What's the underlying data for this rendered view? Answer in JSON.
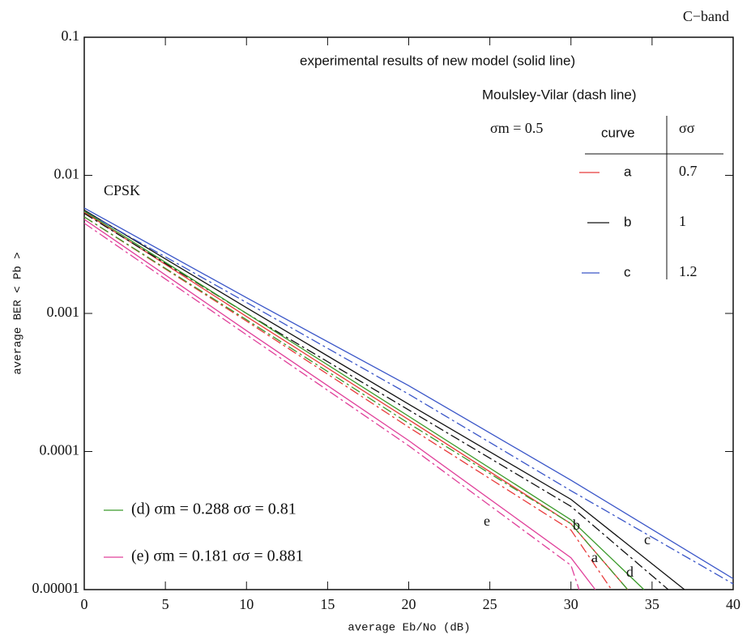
{
  "chart_data": {
    "type": "line",
    "log_y": true,
    "xlabel": "average Eb/No   (dB)",
    "ylabel": "average BER  < Pb >",
    "xlim": [
      0,
      40
    ],
    "xticks": [
      0,
      5,
      10,
      15,
      20,
      25,
      30,
      35,
      40
    ],
    "ylim": [
      1e-05,
      0.1
    ],
    "yticks": [
      0.1,
      0.01,
      0.001,
      0.0001,
      1e-05
    ],
    "annotations": {
      "band": "C−band",
      "modulation": "CPSK",
      "solid_note": "experimental results of new model (solid line)",
      "dash_note": "Moulsley-Vilar (dash line)"
    },
    "legend_table": {
      "sigma_m": "σm = 0.5",
      "headers": [
        "curve",
        "σσ"
      ],
      "rows": [
        [
          "a",
          "0.7"
        ],
        [
          "b",
          "1"
        ],
        [
          "c",
          "1.2"
        ]
      ]
    },
    "bottom_legend": [
      "(d) σm = 0.288   σσ = 0.81",
      "(e) σm = 0.181   σσ = 0.881"
    ],
    "series": [
      {
        "name": "a",
        "color": "#e83a3a",
        "dash": false,
        "x": [
          0,
          10,
          20,
          30,
          33.5
        ],
        "values": [
          0.0054,
          0.00095,
          0.00017,
          3e-05,
          1e-05
        ]
      },
      {
        "color": "#e83a3a",
        "dash": true,
        "x": [
          0,
          10,
          20,
          30,
          32.5
        ],
        "values": [
          0.005,
          0.00088,
          0.00015,
          2.7e-05,
          1e-05
        ]
      },
      {
        "name": "b",
        "color": "#111111",
        "dash": false,
        "x": [
          0,
          10,
          20,
          30,
          37
        ],
        "values": [
          0.0056,
          0.0011,
          0.00022,
          4.5e-05,
          1e-05
        ]
      },
      {
        "color": "#111111",
        "dash": true,
        "x": [
          0,
          10,
          20,
          30,
          36
        ],
        "values": [
          0.0053,
          0.001,
          0.0002,
          4e-05,
          1e-05
        ]
      },
      {
        "name": "c",
        "color": "#3a56c8",
        "dash": false,
        "x": [
          0,
          10,
          20,
          30,
          40
        ],
        "values": [
          0.0058,
          0.0013,
          0.0003,
          6.2e-05,
          1.2e-05
        ]
      },
      {
        "color": "#3a56c8",
        "dash": true,
        "x": [
          0,
          10,
          20,
          30,
          40
        ],
        "values": [
          0.0055,
          0.0012,
          0.00026,
          5.2e-05,
          1.1e-05
        ]
      },
      {
        "name": "d",
        "color": "#3a9a2a",
        "dash": false,
        "x": [
          0,
          10,
          20,
          30,
          34.5
        ],
        "values": [
          0.0055,
          0.001,
          0.00018,
          3.2e-05,
          1e-05
        ]
      },
      {
        "color": "#3a9a2a",
        "dash": true,
        "x": [
          0,
          10,
          20,
          30,
          33.5
        ],
        "values": [
          0.005,
          0.0009,
          0.00016,
          3e-05,
          1e-05
        ]
      },
      {
        "name": "e",
        "color": "#e0409a",
        "dash": false,
        "x": [
          0,
          10,
          20,
          30,
          31.5
        ],
        "values": [
          0.0048,
          0.00075,
          0.00012,
          1.7e-05,
          1e-05
        ]
      },
      {
        "color": "#e0409a",
        "dash": true,
        "x": [
          0,
          10,
          20,
          30,
          30.5
        ],
        "values": [
          0.0045,
          0.0007,
          0.00011,
          1.5e-05,
          1e-05
        ]
      }
    ]
  }
}
